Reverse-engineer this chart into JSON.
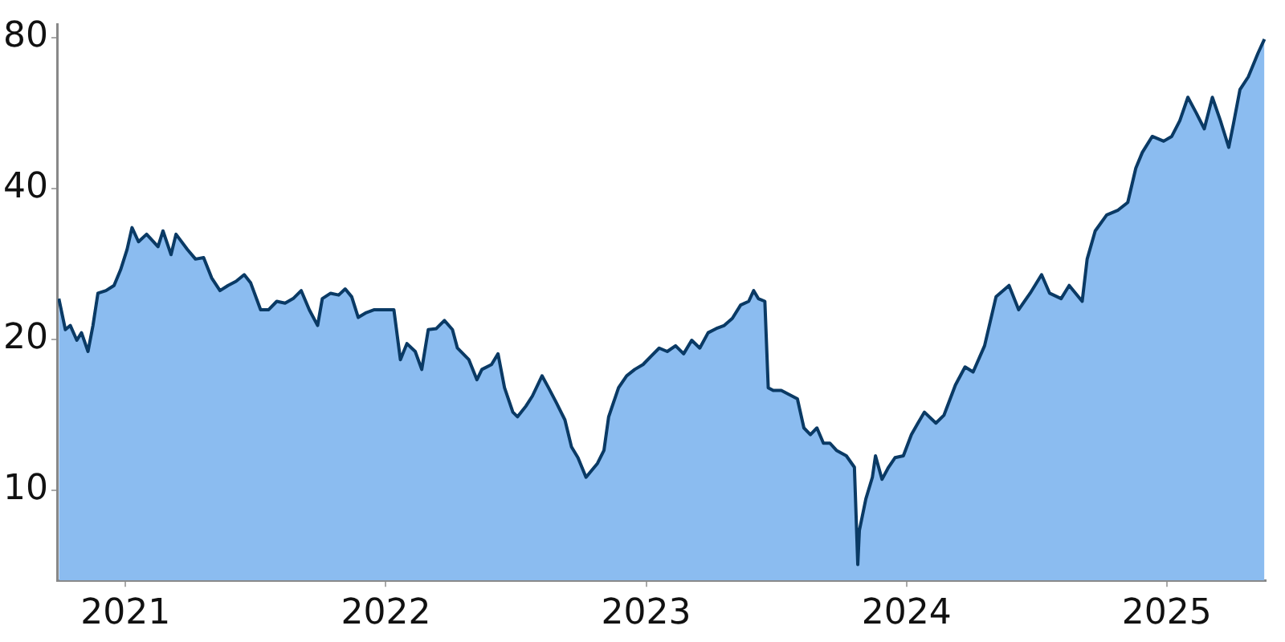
{
  "chart_data": {
    "type": "area",
    "log": "y",
    "legend": false,
    "marker": "none",
    "line_style": "solid",
    "xlim": [
      2020.74,
      2025.38
    ],
    "xticks": [
      2021,
      2022,
      2023,
      2024,
      2025
    ],
    "ylim": [
      6.6,
      85
    ],
    "yticks": [
      10,
      20,
      40,
      80
    ],
    "series": [
      {
        "color": "#8bbcf0",
        "x": [
          2020.744,
          2020.769,
          2020.788,
          2020.813,
          2020.831,
          2020.856,
          2020.875,
          2020.894,
          2020.925,
          2020.956,
          2020.981,
          2021.006,
          2021.025,
          2021.05,
          2021.081,
          2021.125,
          2021.144,
          2021.175,
          2021.194,
          2021.238,
          2021.269,
          2021.3,
          2021.331,
          2021.363,
          2021.394,
          2021.425,
          2021.456,
          2021.481,
          2021.519,
          2021.55,
          2021.581,
          2021.613,
          2021.644,
          2021.675,
          2021.706,
          2021.738,
          2021.756,
          2021.788,
          2021.819,
          2021.844,
          2021.869,
          2021.894,
          2021.925,
          2021.956,
          2022,
          2022.031,
          2022.056,
          2022.081,
          2022.113,
          2022.138,
          2022.163,
          2022.194,
          2022.225,
          2022.256,
          2022.275,
          2022.319,
          2022.35,
          2022.369,
          2022.406,
          2022.431,
          2022.456,
          2022.488,
          2022.506,
          2022.538,
          2022.563,
          2022.6,
          2022.625,
          2022.656,
          2022.688,
          2022.713,
          2022.738,
          2022.769,
          2022.788,
          2022.813,
          2022.838,
          2022.856,
          2022.894,
          2022.925,
          2022.956,
          2022.988,
          2023.019,
          2023.05,
          2023.081,
          2023.113,
          2023.144,
          2023.175,
          2023.206,
          2023.238,
          2023.269,
          2023.3,
          2023.331,
          2023.363,
          2023.394,
          2023.413,
          2023.431,
          2023.456,
          2023.469,
          2023.488,
          2023.519,
          2023.581,
          2023.606,
          2023.631,
          2023.656,
          2023.681,
          2023.706,
          2023.731,
          2023.769,
          2023.8,
          2023.813,
          2023.819,
          2023.844,
          2023.869,
          2023.881,
          2023.906,
          2023.931,
          2023.956,
          2023.988,
          2024.019,
          2024.044,
          2024.069,
          2024.113,
          2024.144,
          2024.188,
          2024.225,
          2024.256,
          2024.3,
          2024.344,
          2024.394,
          2024.431,
          2024.475,
          2024.519,
          2024.55,
          2024.594,
          2024.625,
          2024.675,
          2024.694,
          2024.725,
          2024.769,
          2024.813,
          2024.85,
          2024.881,
          2024.906,
          2024.944,
          2024.988,
          2025.019,
          2025.05,
          2025.081,
          2025.113,
          2025.144,
          2025.175,
          2025.206,
          2025.238,
          2025.256,
          2025.281,
          2025.313,
          2025.35,
          2025.375
        ],
        "values": [
          24.1,
          20.9,
          21.3,
          19.9,
          20.6,
          18.9,
          21.3,
          24.7,
          25.0,
          25.6,
          27.5,
          30.2,
          33.4,
          31.3,
          32.4,
          30.6,
          32.9,
          29.5,
          32.4,
          30.2,
          28.9,
          29.1,
          26.5,
          25.0,
          25.6,
          26.1,
          26.9,
          25.9,
          22.9,
          22.9,
          23.8,
          23.6,
          24.1,
          25.0,
          22.9,
          21.3,
          24.1,
          24.7,
          24.5,
          25.2,
          24.3,
          22.1,
          22.6,
          22.9,
          22.9,
          22.9,
          18.2,
          19.6,
          18.9,
          17.4,
          20.9,
          21.0,
          21.8,
          20.9,
          19.2,
          18.2,
          16.6,
          17.4,
          17.8,
          18.7,
          16.0,
          14.3,
          14.0,
          14.7,
          15.4,
          16.9,
          16.0,
          14.9,
          13.8,
          12.2,
          11.6,
          10.6,
          10.9,
          11.3,
          12.0,
          14.0,
          16.0,
          16.9,
          17.4,
          17.8,
          18.5,
          19.2,
          18.9,
          19.4,
          18.7,
          19.9,
          19.2,
          20.6,
          21.0,
          21.3,
          22.0,
          23.4,
          23.8,
          25.0,
          24.1,
          23.8,
          16.0,
          15.8,
          15.8,
          15.2,
          13.3,
          12.9,
          13.3,
          12.4,
          12.4,
          12.0,
          11.7,
          11.1,
          7.1,
          8.3,
          9.6,
          10.6,
          11.7,
          10.5,
          11.1,
          11.6,
          11.7,
          12.9,
          13.6,
          14.3,
          13.6,
          14.1,
          16.2,
          17.6,
          17.2,
          19.4,
          24.3,
          25.6,
          22.9,
          24.7,
          26.9,
          24.7,
          24.1,
          25.6,
          23.8,
          28.9,
          32.9,
          35.4,
          36.2,
          37.5,
          43.9,
          47.2,
          50.8,
          49.7,
          50.8,
          54.6,
          60.8,
          56.6,
          52.6,
          60.8,
          54.6,
          48.3,
          53.8,
          63.0,
          66.8,
          74.4,
          79.4
        ]
      }
    ]
  }
}
